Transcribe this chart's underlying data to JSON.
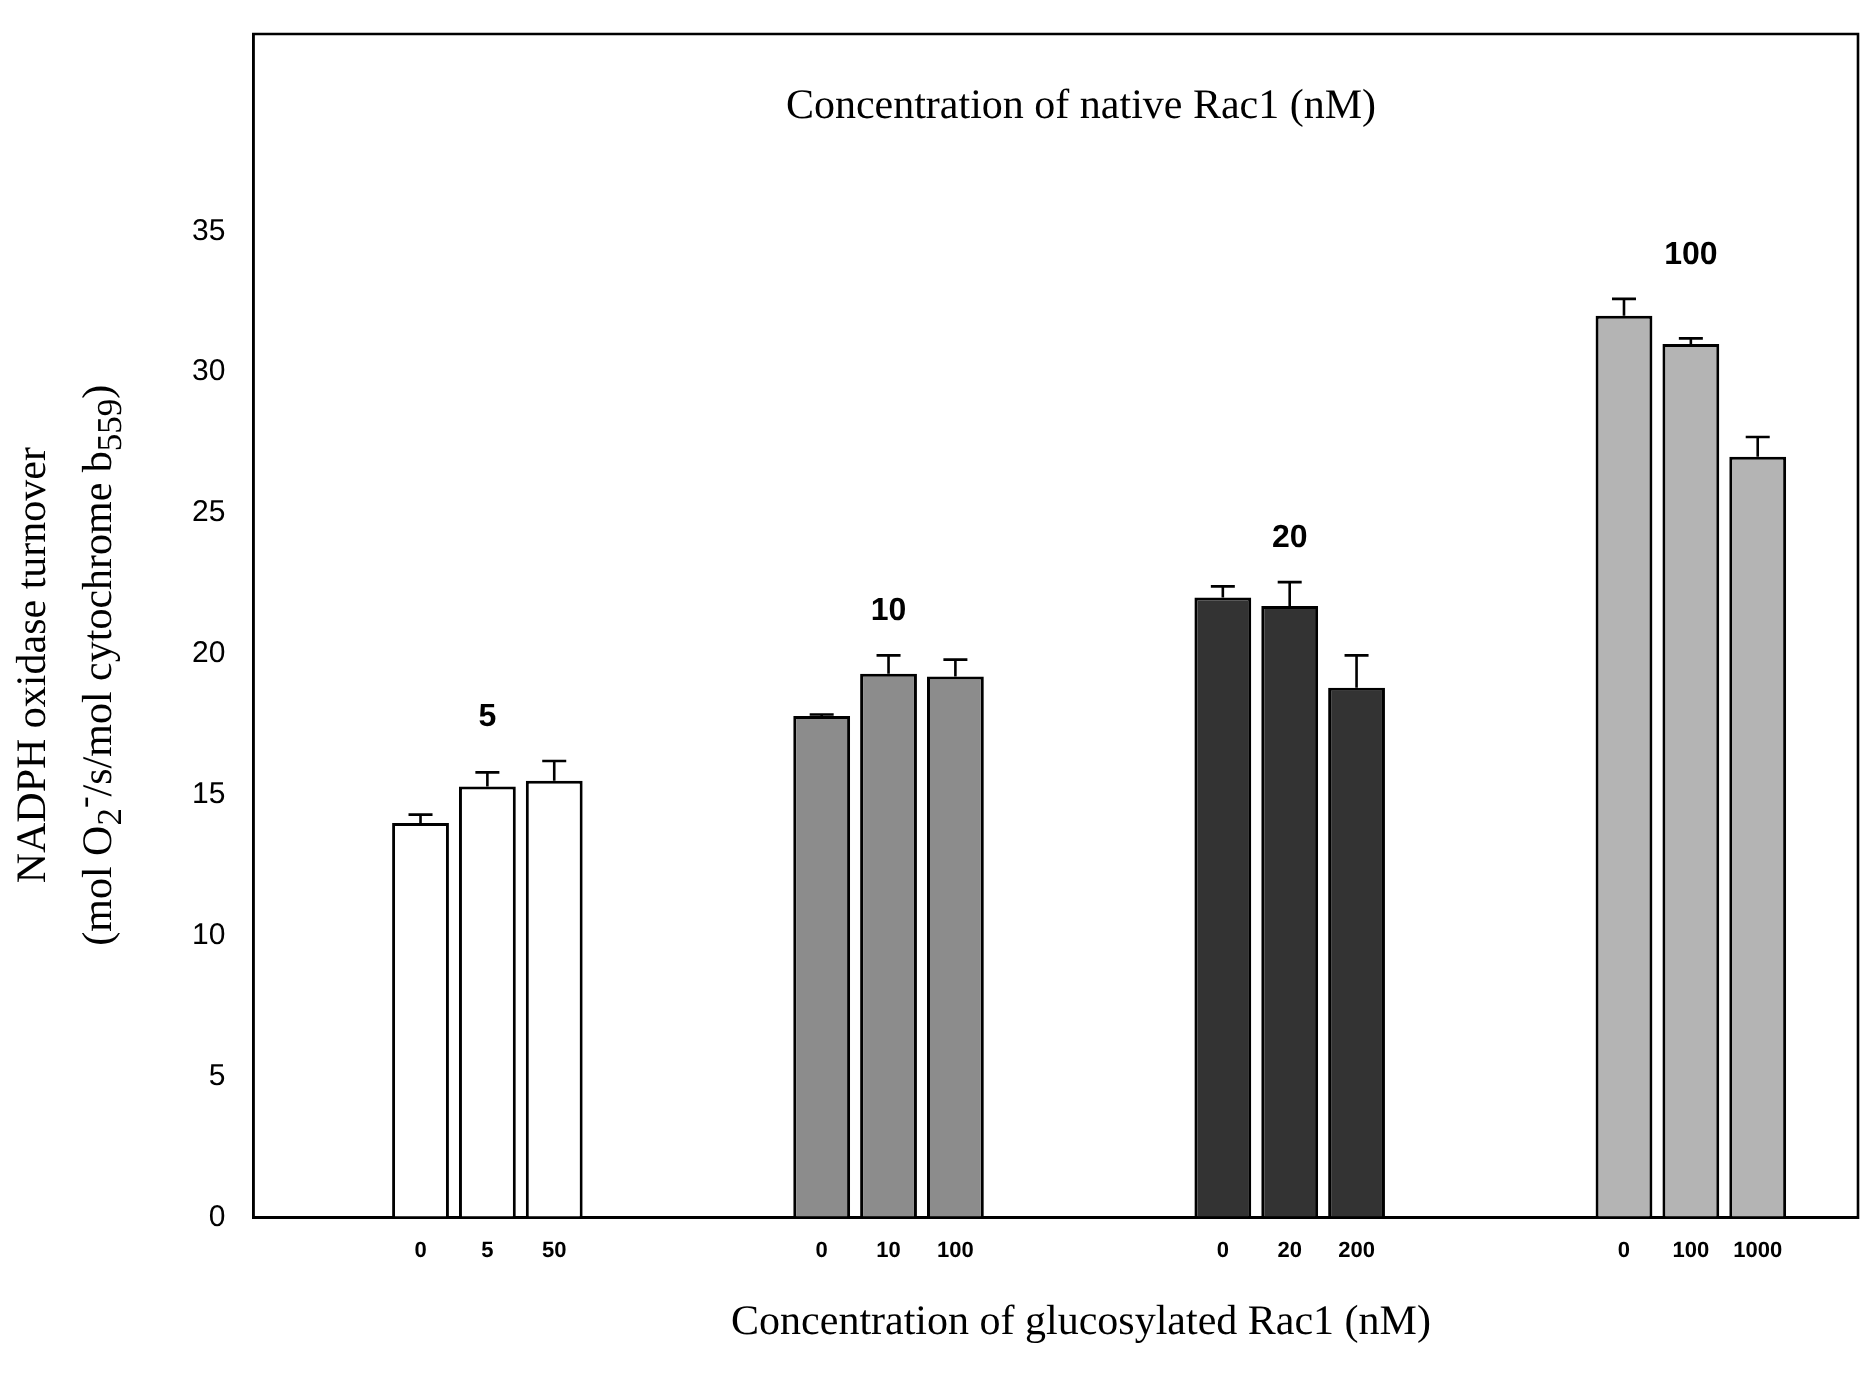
{
  "chart_data": {
    "type": "bar",
    "legend_title": "Concentration of native Rac1 (nM)",
    "xlabel": "Concentration of glucosylated Rac1 (nM)",
    "ylabel": "NADPH oxidase turnover\n(mol O$_{2}$$^{-}$/s/mol cytochrome b$_{559}$)",
    "categories": [
      null,
      null,
      "0",
      "5",
      "50",
      null,
      null,
      null,
      "0",
      "10",
      "100",
      null,
      null,
      null,
      "0",
      "20",
      "200",
      null,
      null,
      null,
      "0",
      "100",
      "1000",
      null
    ],
    "series": [
      {
        "name": "5",
        "color": "#ffffff",
        "values": [
          null,
          null,
          14.0,
          15.3,
          15.5,
          null,
          null,
          null,
          null,
          null,
          null,
          null,
          null,
          null,
          null,
          null,
          null,
          null,
          null,
          null,
          null,
          null,
          null,
          null
        ],
        "errors": [
          null,
          null,
          0.3,
          0.5,
          0.7,
          null,
          null,
          null,
          null,
          null,
          null,
          null,
          null,
          null,
          null,
          null,
          null,
          null,
          null,
          null,
          null,
          null,
          null,
          null
        ]
      },
      {
        "name": "10",
        "color": "#8c8c8c",
        "values": [
          null,
          null,
          null,
          null,
          null,
          null,
          null,
          null,
          17.8,
          19.3,
          19.2,
          null,
          null,
          null,
          null,
          null,
          null,
          null,
          null,
          null,
          null,
          null,
          null,
          null
        ],
        "errors": [
          null,
          null,
          null,
          null,
          null,
          null,
          null,
          null,
          0.05,
          0.65,
          0.6,
          null,
          null,
          null,
          null,
          null,
          null,
          null,
          null,
          null,
          null,
          null,
          null,
          null
        ]
      },
      {
        "name": "20",
        "color": "#333333",
        "values": [
          null,
          null,
          null,
          null,
          null,
          null,
          null,
          null,
          null,
          null,
          null,
          null,
          null,
          null,
          22.0,
          21.7,
          18.8,
          null,
          null,
          null,
          null,
          null,
          null,
          null
        ],
        "errors": [
          null,
          null,
          null,
          null,
          null,
          null,
          null,
          null,
          null,
          null,
          null,
          null,
          null,
          null,
          0.4,
          0.85,
          1.15,
          null,
          null,
          null,
          null,
          null,
          null,
          null
        ]
      },
      {
        "name": "100",
        "color": "#b4b4b4",
        "values": [
          null,
          null,
          null,
          null,
          null,
          null,
          null,
          null,
          null,
          null,
          null,
          null,
          null,
          null,
          null,
          null,
          null,
          null,
          null,
          null,
          32.0,
          31.0,
          27.0,
          null
        ],
        "errors": [
          null,
          null,
          null,
          null,
          null,
          null,
          null,
          null,
          null,
          null,
          null,
          null,
          null,
          null,
          null,
          null,
          null,
          null,
          null,
          null,
          0.6,
          0.2,
          0.7,
          null
        ]
      }
    ],
    "ylim": [
      0,
      42
    ],
    "yticks": [
      0,
      5,
      10,
      15,
      20,
      25,
      30,
      35
    ],
    "grid": false
  }
}
